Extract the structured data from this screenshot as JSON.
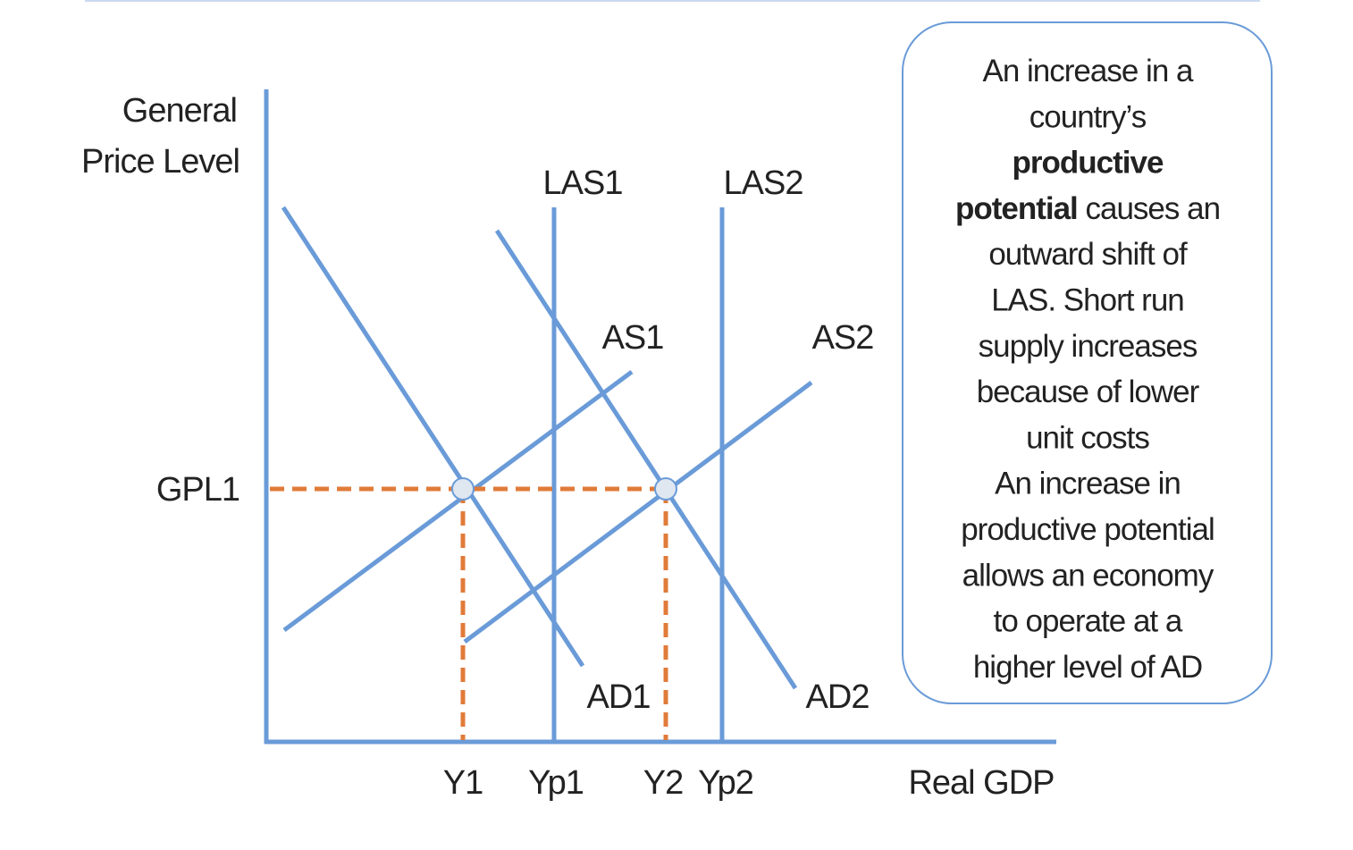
{
  "diagram": {
    "y_axis_label": [
      "General",
      "Price Level"
    ],
    "x_axis_label": "Real GDP",
    "price_level_label": "GPL1",
    "x_labels": [
      "Y1",
      "Yp1",
      "Y2",
      "Yp2"
    ],
    "curves": {
      "las1": "LAS1",
      "las2": "LAS2",
      "as1": "AS1",
      "as2": "AS2",
      "ad1": "AD1",
      "ad2": "AD2"
    }
  },
  "note": {
    "lines": [
      [
        {
          "text": "An increase in a",
          "bold": false
        }
      ],
      [
        {
          "text": "country’s",
          "bold": false
        }
      ],
      [
        {
          "text": "productive",
          "bold": true
        }
      ],
      [
        {
          "text": "potential",
          "bold": true
        },
        {
          "text": " causes an",
          "bold": false
        }
      ],
      [
        {
          "text": "outward shift of",
          "bold": false
        }
      ],
      [
        {
          "text": "LAS. Short run",
          "bold": false
        }
      ],
      [
        {
          "text": "supply increases",
          "bold": false
        }
      ],
      [
        {
          "text": "because of lower",
          "bold": false
        }
      ],
      [
        {
          "text": "unit costs",
          "bold": false
        }
      ],
      [
        {
          "text": "An increase in",
          "bold": false
        }
      ],
      [
        {
          "text": "productive potential",
          "bold": false
        }
      ],
      [
        {
          "text": "allows an economy",
          "bold": false
        }
      ],
      [
        {
          "text": "to operate at a",
          "bold": false
        }
      ],
      [
        {
          "text": "higher level of AD",
          "bold": false
        }
      ]
    ]
  }
}
